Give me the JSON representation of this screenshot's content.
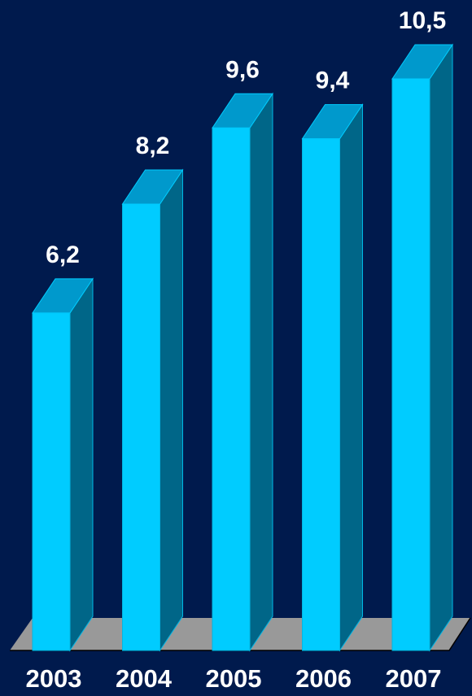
{
  "chart_data": {
    "type": "bar",
    "style": "3d-column",
    "categories": [
      "2003",
      "2004",
      "2005",
      "2006",
      "2007"
    ],
    "values": [
      6.2,
      8.2,
      9.6,
      9.4,
      10.5
    ],
    "value_labels": [
      "6,2",
      "8,2",
      "9,6",
      "9,4",
      "10,5"
    ],
    "title": "",
    "xlabel": "",
    "ylabel": "",
    "ylim": [
      0,
      10.5
    ],
    "grid": false,
    "legend": "none",
    "colors": {
      "background": "#001a4d",
      "bar_front": "#00ccff",
      "bar_top": "#0099cc",
      "bar_side": "#006688",
      "floor": "#999999",
      "text": "#ffffff"
    }
  }
}
